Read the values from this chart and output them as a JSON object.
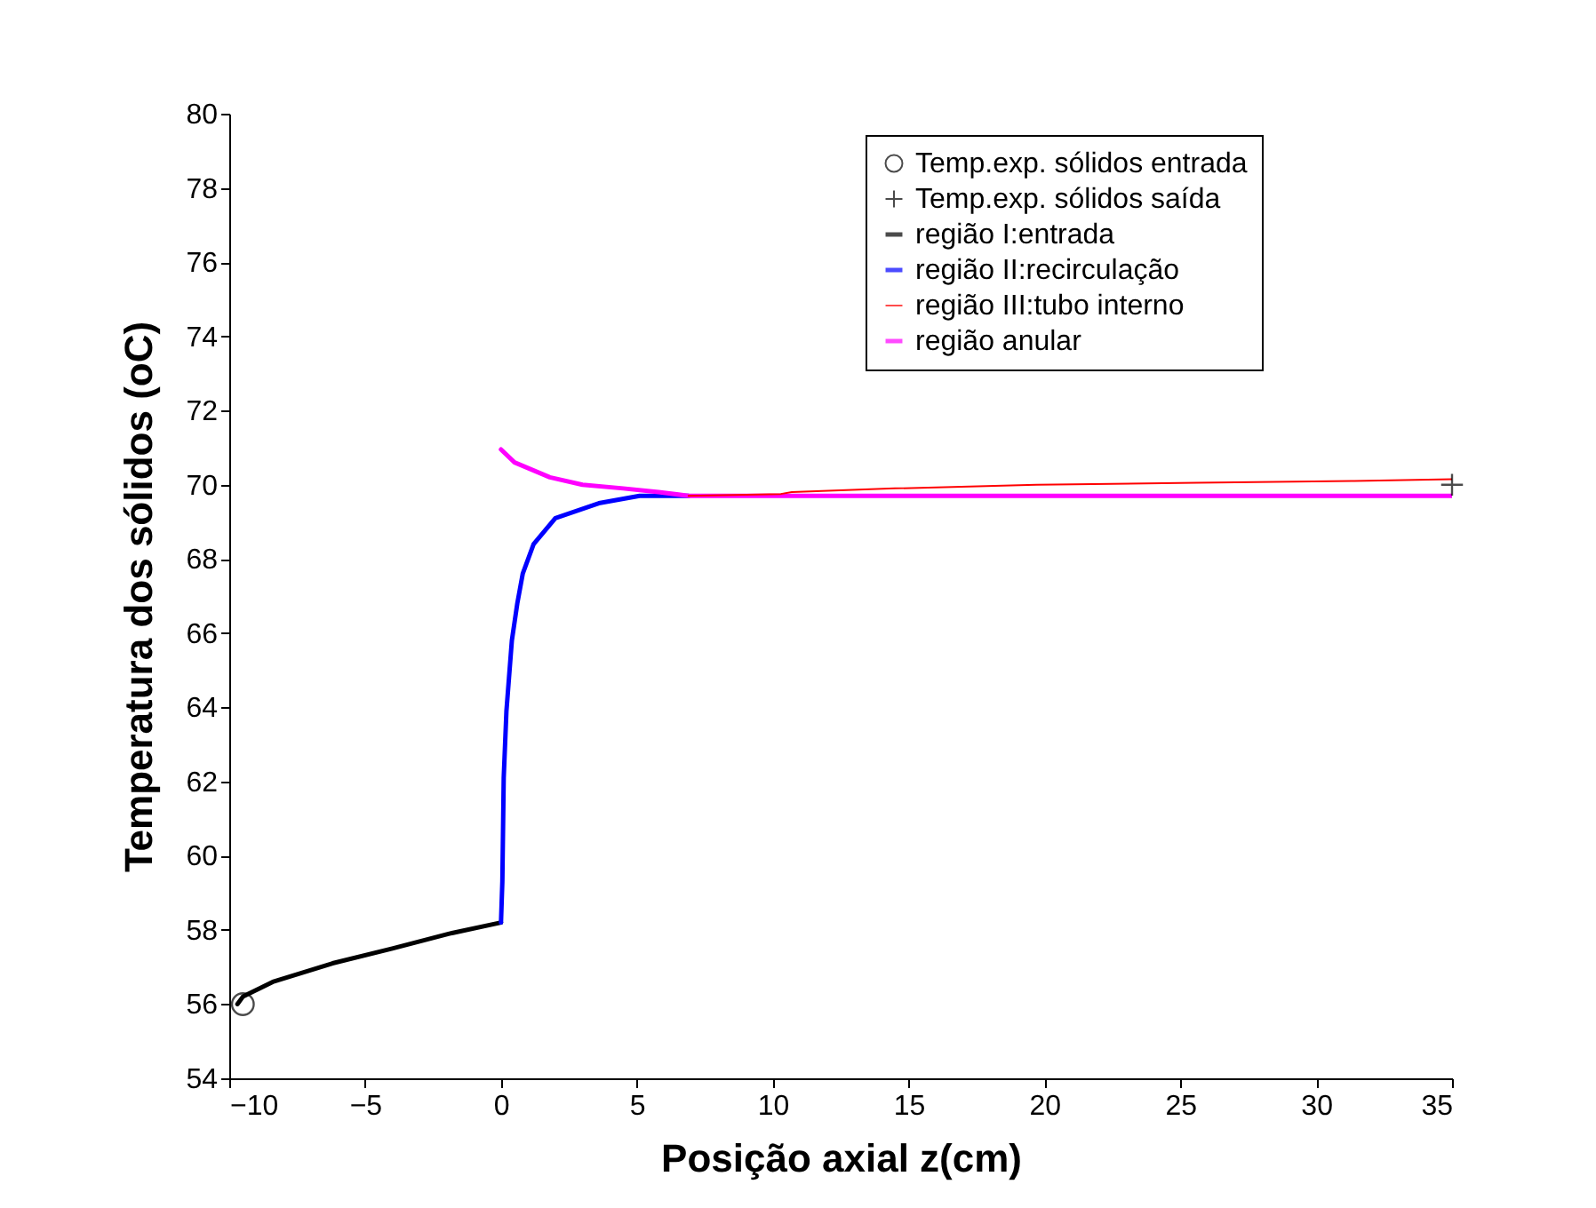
{
  "chart_data": {
    "type": "line",
    "xlabel": "Posição axial z(cm)",
    "ylabel": "Temperatura dos sólidos (oC)",
    "xlim": [
      -10,
      35
    ],
    "xticks": [
      -10,
      -5,
      0,
      5,
      10,
      15,
      20,
      25,
      30,
      35
    ],
    "ylim": [
      54,
      80
    ],
    "yticks": [
      54,
      56,
      58,
      60,
      62,
      64,
      66,
      68,
      70,
      72,
      74,
      76,
      78,
      80
    ],
    "grid": false,
    "legend": "top right",
    "series": [
      {
        "name": "Temp.exp. sólidos entrada",
        "type": "scatter",
        "marker": "circle",
        "color": "#000000",
        "x": [
          -9.5
        ],
        "values": [
          56
        ]
      },
      {
        "name": "Temp.exp. sólidos saída",
        "type": "scatter",
        "marker": "cross",
        "color": "#000000",
        "x": [
          35
        ],
        "values": [
          70
        ]
      },
      {
        "name": "região I:entrada",
        "color": "#000000",
        "x": [
          -9.7,
          -9.5,
          -8.4,
          -6.2,
          -4.0,
          -1.9,
          0
        ],
        "values": [
          56.0,
          56.2,
          56.6,
          57.1,
          57.5,
          57.9,
          58.2
        ]
      },
      {
        "name": "região II:recirculação",
        "color": "#0000ff",
        "x": [
          0,
          0.05,
          0.1,
          0.2,
          0.4,
          0.6,
          0.8,
          1.2,
          2.0,
          3.6,
          5.1,
          6.9
        ],
        "values": [
          58.2,
          59.3,
          62.1,
          63.9,
          65.8,
          66.8,
          67.6,
          68.4,
          69.1,
          69.5,
          69.7,
          69.7
        ]
      },
      {
        "name": "região III:tubo interno",
        "color": "#ff0000",
        "x": [
          6.9,
          10.3,
          10.7,
          14.5,
          19.7,
          25.6,
          31.3,
          35
        ],
        "values": [
          69.7,
          69.75,
          69.8,
          69.9,
          70.0,
          70.05,
          70.1,
          70.15
        ]
      },
      {
        "name": "região anular",
        "color": "#ff00ff",
        "x": [
          0,
          0.5,
          1.8,
          3.0,
          4.5,
          5.8,
          6.9,
          35
        ],
        "values": [
          70.95,
          70.6,
          70.2,
          70.0,
          69.9,
          69.8,
          69.7,
          69.7
        ]
      }
    ]
  }
}
